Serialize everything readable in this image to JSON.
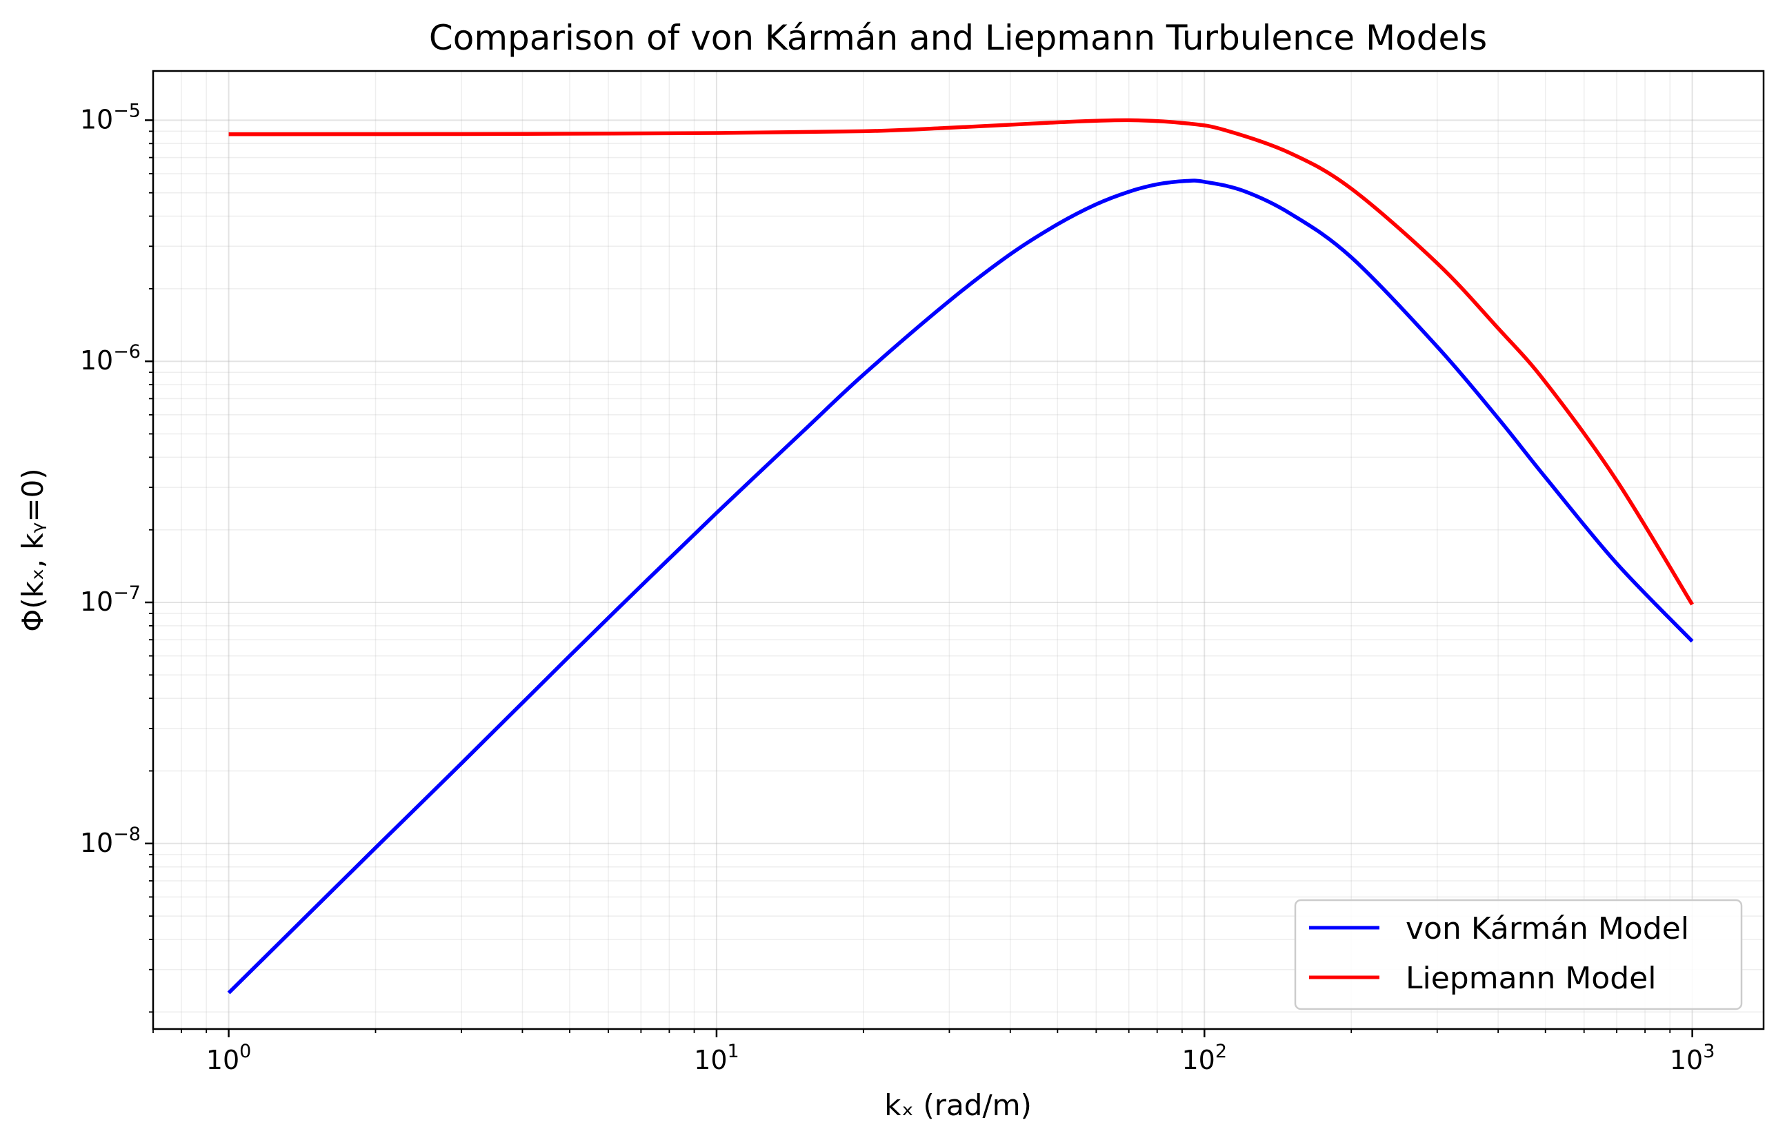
{
  "chart_data": {
    "type": "line",
    "title": "Comparison of von Kármán and Liepmann Turbulence Models",
    "xlabel": "kₓ (rad/m)",
    "ylabel": "Φ(kₓ, kᵧ=0)",
    "xscale": "log",
    "yscale": "log",
    "xlim": [
      0.7,
      1400
    ],
    "ylim": [
      1.7e-09,
      1.6e-05
    ],
    "x_ticks": [
      {
        "value": 1,
        "base": "10",
        "exp": "0"
      },
      {
        "value": 10,
        "base": "10",
        "exp": "1"
      },
      {
        "value": 100,
        "base": "10",
        "exp": "2"
      },
      {
        "value": 1000,
        "base": "10",
        "exp": "3"
      }
    ],
    "y_ticks": [
      {
        "value": 1e-08,
        "base": "10",
        "exp": "−8"
      },
      {
        "value": 1e-07,
        "base": "10",
        "exp": "−7"
      },
      {
        "value": 1e-06,
        "base": "10",
        "exp": "−6"
      },
      {
        "value": 1e-05,
        "base": "10",
        "exp": "−5"
      }
    ],
    "grid": true,
    "legend_position": "bottom-right",
    "series": [
      {
        "name": "von Kármán Model",
        "color": "#0000ff",
        "x": [
          1,
          2,
          3,
          5,
          7,
          10,
          15,
          20,
          30,
          40,
          50,
          60,
          70,
          80,
          92,
          100,
          120,
          150,
          200,
          300,
          400,
          500,
          700,
          1000
        ],
        "y": [
          2.4e-09,
          9.6e-09,
          2.15e-08,
          6e-08,
          1.17e-07,
          2.35e-07,
          5.1e-07,
          8.8e-07,
          1.78e-06,
          2.78e-06,
          3.7e-06,
          4.48e-06,
          5.05e-06,
          5.42e-06,
          5.6e-06,
          5.55e-06,
          5.1e-06,
          4.1e-06,
          2.7e-06,
          1.15e-06,
          5.8e-07,
          3.3e-07,
          1.45e-07,
          6.9e-08
        ]
      },
      {
        "name": "Liepmann Model",
        "color": "#ff0000",
        "x": [
          1,
          3,
          10,
          20,
          30,
          50,
          70,
          92,
          110,
          150,
          200,
          300,
          400,
          500,
          700,
          1000
        ],
        "y": [
          8.75e-06,
          8.76e-06,
          8.85e-06,
          9e-06,
          9.3e-06,
          9.8e-06,
          1e-05,
          9.7e-06,
          9.1e-06,
          7.3e-06,
          5.2e-06,
          2.55e-06,
          1.37e-06,
          8.2e-07,
          3.2e-07,
          9.8e-08
        ]
      }
    ]
  }
}
